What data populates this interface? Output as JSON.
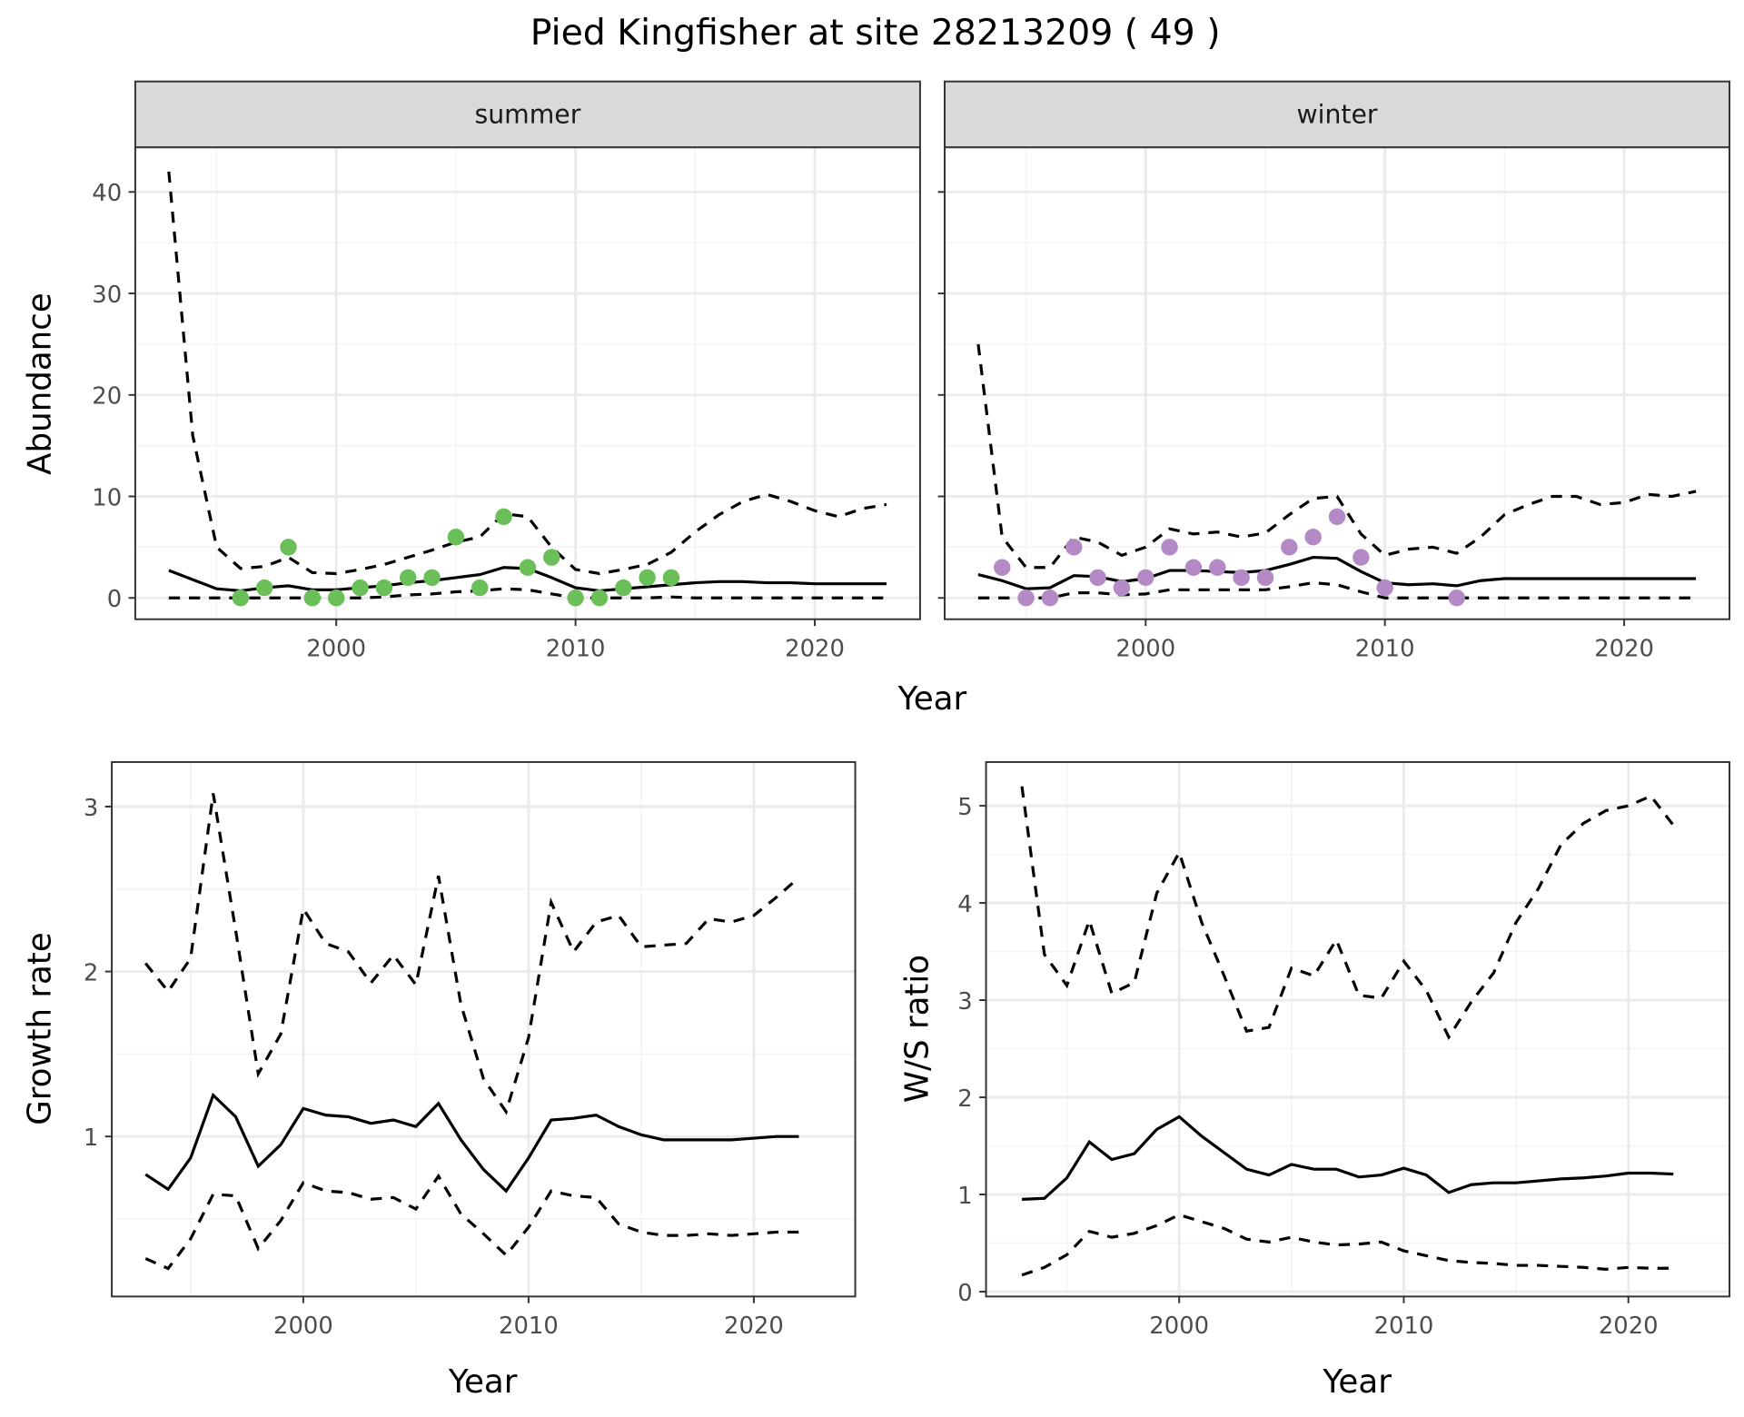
{
  "title": "Pied Kingfisher at site 28213209 ( 49 )",
  "colors": {
    "summer_points": "#6abf59",
    "winter_points": "#b48ac6",
    "lines": "#000000",
    "strip_bg": "#d9d9d9",
    "grid": "#ebebeb"
  },
  "chart_data": [
    {
      "id": "summer",
      "type": "line+scatter",
      "strip": "summer",
      "xlabel": "Year",
      "ylabel": "Abundance",
      "xlim": [
        1991.6,
        2024.4
      ],
      "ylim": [
        -2.1,
        44.4
      ],
      "xticks": [
        2000,
        2010,
        2020
      ],
      "yticks": [
        0,
        10,
        20,
        30,
        40
      ],
      "grid": true,
      "years": [
        1993,
        1994,
        1995,
        1996,
        1997,
        1998,
        1999,
        2000,
        2001,
        2002,
        2003,
        2004,
        2005,
        2006,
        2007,
        2008,
        2009,
        2010,
        2011,
        2012,
        2013,
        2014,
        2015,
        2016,
        2017,
        2018,
        2019,
        2020,
        2021,
        2022,
        2023
      ],
      "mean": [
        2.7,
        1.8,
        0.9,
        0.7,
        1.0,
        1.2,
        0.8,
        0.8,
        1.0,
        1.2,
        1.5,
        1.7,
        2.0,
        2.3,
        3.0,
        2.9,
        2.0,
        1.0,
        0.7,
        0.9,
        1.1,
        1.3,
        1.5,
        1.6,
        1.6,
        1.5,
        1.5,
        1.4,
        1.4,
        1.4,
        1.4
      ],
      "upper": [
        42,
        16,
        5,
        2.9,
        3.1,
        4,
        2.5,
        2.4,
        2.8,
        3.3,
        4,
        4.7,
        5.5,
        6,
        8.3,
        8,
        5,
        2.8,
        2.4,
        2.8,
        3.3,
        4.5,
        6.5,
        8.2,
        9.5,
        10.2,
        9.5,
        8.6,
        8,
        8.8,
        9.2
      ],
      "lower": [
        0,
        0,
        0,
        0,
        0,
        0,
        0,
        0,
        0,
        0.1,
        0.3,
        0.4,
        0.6,
        0.7,
        0.9,
        0.8,
        0.4,
        0,
        0,
        0,
        0,
        0.1,
        0,
        0,
        0,
        0,
        0,
        0,
        0,
        0,
        0
      ],
      "points": {
        "x": [
          1996,
          1997,
          1998,
          1999,
          2000,
          2001,
          2002,
          2003,
          2004,
          2005,
          2006,
          2007,
          2008,
          2009,
          2010,
          2011,
          2012,
          2013,
          2014
        ],
        "y": [
          0,
          1,
          5,
          0,
          0,
          1,
          1,
          2,
          2,
          6,
          1,
          8,
          3,
          4,
          0,
          0,
          1,
          2,
          2
        ]
      }
    },
    {
      "id": "winter",
      "type": "line+scatter",
      "strip": "winter",
      "xlabel": "Year",
      "ylabel": "Abundance",
      "xlim": [
        1991.6,
        2024.4
      ],
      "ylim": [
        -2.1,
        44.4
      ],
      "xticks": [
        2000,
        2010,
        2020
      ],
      "yticks": [
        0,
        10,
        20,
        30,
        40
      ],
      "grid": true,
      "years": [
        1993,
        1994,
        1995,
        1996,
        1997,
        1998,
        1999,
        2000,
        2001,
        2002,
        2003,
        2004,
        2005,
        2006,
        2007,
        2008,
        2009,
        2010,
        2011,
        2012,
        2013,
        2014,
        2015,
        2016,
        2017,
        2018,
        2019,
        2020,
        2021,
        2022,
        2023
      ],
      "mean": [
        2.3,
        1.7,
        0.9,
        1.0,
        2.2,
        2.1,
        1.6,
        1.9,
        2.7,
        2.7,
        2.6,
        2.5,
        2.7,
        3.3,
        4.0,
        3.9,
        2.6,
        1.5,
        1.3,
        1.4,
        1.2,
        1.7,
        1.9,
        1.9,
        1.9,
        1.9,
        1.9,
        1.9,
        1.9,
        1.9,
        1.9
      ],
      "upper": [
        25,
        6,
        3,
        3,
        6,
        5.5,
        4.2,
        5,
        6.8,
        6.3,
        6.5,
        6,
        6.4,
        8.2,
        9.8,
        10,
        6.3,
        4.2,
        4.8,
        5,
        4.4,
        6,
        8.2,
        9.2,
        10,
        10,
        9.2,
        9.4,
        10.2,
        10,
        10.5
      ],
      "lower": [
        0,
        0,
        0,
        0,
        0.5,
        0.5,
        0.3,
        0.4,
        0.8,
        0.8,
        0.8,
        0.8,
        0.8,
        1.1,
        1.5,
        1.3,
        0.6,
        0,
        0,
        0,
        0,
        0,
        0,
        0,
        0,
        0,
        0,
        0,
        0,
        0,
        0
      ],
      "points": {
        "x": [
          1994,
          1995,
          1996,
          1997,
          1998,
          1999,
          2000,
          2001,
          2002,
          2003,
          2004,
          2005,
          2006,
          2007,
          2008,
          2009,
          2010,
          2013
        ],
        "y": [
          3,
          0,
          0,
          5,
          2,
          1,
          2,
          5,
          3,
          3,
          2,
          2,
          5,
          6,
          8,
          4,
          1,
          0
        ]
      }
    },
    {
      "id": "growth",
      "type": "line",
      "xlabel": "Year",
      "ylabel": "Growth rate",
      "xlim": [
        1991.5,
        2024.5
      ],
      "ylim": [
        0.03,
        3.27
      ],
      "xticks": [
        2000,
        2010,
        2020
      ],
      "yticks": [
        1,
        2,
        3
      ],
      "grid": true,
      "years": [
        1993,
        1994,
        1995,
        1996,
        1997,
        1998,
        1999,
        2000,
        2001,
        2002,
        2003,
        2004,
        2005,
        2006,
        2007,
        2008,
        2009,
        2010,
        2011,
        2012,
        2013,
        2014,
        2015,
        2016,
        2017,
        2018,
        2019,
        2020,
        2021,
        2022
      ],
      "mean": [
        0.77,
        0.68,
        0.87,
        1.25,
        1.12,
        0.82,
        0.95,
        1.17,
        1.13,
        1.12,
        1.08,
        1.1,
        1.06,
        1.2,
        0.98,
        0.8,
        0.67,
        0.87,
        1.1,
        1.11,
        1.13,
        1.06,
        1.01,
        0.98,
        0.98,
        0.98,
        0.98,
        0.99,
        1.0,
        1.0
      ],
      "upper": [
        2.05,
        1.88,
        2.08,
        3.08,
        2.25,
        1.38,
        1.62,
        2.38,
        2.17,
        2.12,
        1.93,
        2.1,
        1.92,
        2.58,
        1.8,
        1.35,
        1.15,
        1.6,
        2.42,
        2.12,
        2.3,
        2.34,
        2.15,
        2.16,
        2.17,
        2.32,
        2.3,
        2.34,
        2.45,
        2.57
      ],
      "lower": [
        0.26,
        0.2,
        0.38,
        0.65,
        0.64,
        0.32,
        0.49,
        0.72,
        0.67,
        0.66,
        0.62,
        0.63,
        0.56,
        0.76,
        0.53,
        0.41,
        0.28,
        0.45,
        0.67,
        0.64,
        0.63,
        0.47,
        0.42,
        0.4,
        0.4,
        0.41,
        0.4,
        0.41,
        0.42,
        0.42
      ]
    },
    {
      "id": "ratio",
      "type": "line",
      "xlabel": "Year",
      "ylabel": "W/S ratio",
      "xlim": [
        1991.4,
        2024.5
      ],
      "ylim": [
        -0.05,
        5.45
      ],
      "xticks": [
        2000,
        2010,
        2020
      ],
      "yticks": [
        0,
        1,
        2,
        3,
        4,
        5
      ],
      "grid": true,
      "years": [
        1993,
        1994,
        1995,
        1996,
        1997,
        1998,
        1999,
        2000,
        2001,
        2002,
        2003,
        2004,
        2005,
        2006,
        2007,
        2008,
        2009,
        2010,
        2011,
        2012,
        2013,
        2014,
        2015,
        2016,
        2017,
        2018,
        2019,
        2020,
        2021,
        2022
      ],
      "mean": [
        0.95,
        0.96,
        1.17,
        1.54,
        1.36,
        1.42,
        1.67,
        1.8,
        1.6,
        1.43,
        1.26,
        1.2,
        1.31,
        1.26,
        1.26,
        1.18,
        1.2,
        1.27,
        1.2,
        1.02,
        1.1,
        1.12,
        1.12,
        1.14,
        1.16,
        1.17,
        1.19,
        1.22,
        1.22,
        1.21
      ],
      "upper": [
        5.2,
        3.47,
        3.15,
        3.82,
        3.07,
        3.18,
        4.1,
        4.52,
        3.8,
        3.25,
        2.68,
        2.72,
        3.33,
        3.25,
        3.62,
        3.05,
        3.02,
        3.4,
        3.1,
        2.62,
        2.98,
        3.28,
        3.8,
        4.15,
        4.6,
        4.82,
        4.95,
        5.0,
        5.1,
        4.8
      ],
      "lower": [
        0.17,
        0.25,
        0.38,
        0.62,
        0.56,
        0.6,
        0.68,
        0.79,
        0.72,
        0.65,
        0.54,
        0.51,
        0.56,
        0.51,
        0.48,
        0.49,
        0.51,
        0.42,
        0.37,
        0.32,
        0.3,
        0.29,
        0.27,
        0.27,
        0.26,
        0.25,
        0.23,
        0.25,
        0.24,
        0.24
      ]
    }
  ],
  "top_xlabel": "Year"
}
